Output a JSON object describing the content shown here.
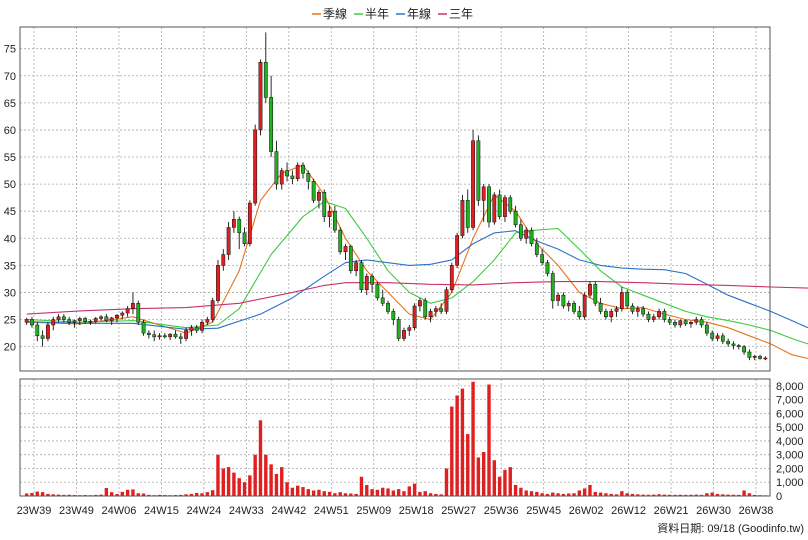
{
  "chart_data": {
    "type": "candlestick",
    "legend": [
      {
        "name": "季線",
        "color": "#e8731c"
      },
      {
        "name": "半年",
        "color": "#3dcc3d"
      },
      {
        "name": "年線",
        "color": "#2b72c8"
      },
      {
        "name": "三年",
        "color": "#c8326a"
      }
    ],
    "price_ticks": [
      20,
      25,
      30,
      35,
      40,
      45,
      50,
      55,
      60,
      65,
      70,
      75
    ],
    "volume_ticks": [
      "0",
      "1,000",
      "2,000",
      "3,000",
      "4,000",
      "5,000",
      "6,000",
      "7,000",
      "8,000"
    ],
    "x_labels": [
      "23W39",
      "23W49",
      "24W06",
      "24W15",
      "24W24",
      "24W33",
      "24W42",
      "24W51",
      "25W09",
      "25W18",
      "25W27",
      "25W36",
      "25W45",
      "26W02",
      "26W12",
      "26W21",
      "26W30",
      "26W38"
    ],
    "price_ylim": [
      15.5,
      79
    ],
    "volume_ylim": [
      0,
      8500
    ],
    "candle_colors": {
      "up": "#e02020",
      "down": "#20b020"
    },
    "volume_color": "#e02020",
    "grid": true,
    "candles": [
      [
        24.5,
        25.3,
        24.0,
        25.0,
        180
      ],
      [
        25.0,
        25.5,
        23.5,
        24.0,
        220
      ],
      [
        24.0,
        24.5,
        21.0,
        22.0,
        320
      ],
      [
        22.0,
        23.0,
        20.0,
        21.5,
        280
      ],
      [
        21.5,
        24.5,
        21.0,
        24.0,
        150
      ],
      [
        24.0,
        25.5,
        23.0,
        25.0,
        120
      ],
      [
        25.0,
        26.0,
        24.5,
        25.5,
        100
      ],
      [
        25.5,
        26.0,
        24.5,
        25.0,
        80
      ],
      [
        25.0,
        25.5,
        24.0,
        24.5,
        90
      ],
      [
        24.5,
        25.0,
        23.5,
        24.8,
        70
      ],
      [
        24.8,
        25.5,
        24.0,
        25.2,
        60
      ],
      [
        25.2,
        25.5,
        24.2,
        24.6,
        70
      ],
      [
        24.6,
        25.0,
        24.0,
        24.7,
        60
      ],
      [
        24.7,
        25.5,
        24.3,
        25.2,
        80
      ],
      [
        25.2,
        25.8,
        24.8,
        25.5,
        100
      ],
      [
        25.5,
        26.0,
        24.5,
        24.8,
        580
      ],
      [
        24.8,
        25.5,
        24.0,
        25.3,
        280
      ],
      [
        25.3,
        26.0,
        24.5,
        25.8,
        140
      ],
      [
        25.8,
        26.5,
        25.0,
        26.2,
        300
      ],
      [
        26.2,
        27.5,
        25.5,
        27.0,
        450
      ],
      [
        27.0,
        30.0,
        26.0,
        28.0,
        480
      ],
      [
        28.0,
        28.5,
        24.0,
        24.5,
        200
      ],
      [
        24.5,
        25.0,
        22.0,
        22.5,
        180
      ],
      [
        22.5,
        23.0,
        21.5,
        22.2,
        80
      ],
      [
        22.2,
        23.0,
        21.0,
        21.8,
        60
      ],
      [
        21.8,
        22.5,
        21.3,
        22.0,
        80
      ],
      [
        22.0,
        22.5,
        21.5,
        21.8,
        70
      ],
      [
        21.8,
        22.5,
        21.2,
        22.3,
        60
      ],
      [
        22.3,
        23.0,
        21.5,
        21.8,
        70
      ],
      [
        21.8,
        22.5,
        20.5,
        21.5,
        80
      ],
      [
        21.5,
        23.5,
        21.0,
        23.0,
        120
      ],
      [
        23.0,
        24.0,
        22.0,
        23.5,
        150
      ],
      [
        23.5,
        24.0,
        22.5,
        23.0,
        220
      ],
      [
        23.0,
        25.0,
        22.5,
        24.5,
        200
      ],
      [
        24.5,
        25.5,
        24.0,
        25.0,
        280
      ],
      [
        25.0,
        29.0,
        24.5,
        28.5,
        420
      ],
      [
        28.5,
        36.0,
        28.0,
        35.0,
        3000
      ],
      [
        35.0,
        38.0,
        34.0,
        37.0,
        2000
      ],
      [
        37.0,
        43.0,
        36.0,
        42.0,
        2100
      ],
      [
        42.0,
        45.0,
        41.0,
        43.5,
        1700
      ],
      [
        43.5,
        44.0,
        38.0,
        41.0,
        1300
      ],
      [
        41.0,
        42.0,
        38.5,
        39.0,
        1000
      ],
      [
        39.0,
        47.0,
        38.5,
        46.5,
        1500
      ],
      [
        46.5,
        61.0,
        46.0,
        60.0,
        3000
      ],
      [
        60.0,
        73.0,
        59.0,
        72.5,
        5500
      ],
      [
        72.5,
        78.0,
        65.0,
        66.0,
        3000
      ],
      [
        66.0,
        70.0,
        55.0,
        56.0,
        2300
      ],
      [
        56.0,
        58.0,
        49.0,
        50.0,
        1600
      ],
      [
        50.0,
        53.0,
        49.0,
        52.5,
        2100
      ],
      [
        52.5,
        54.0,
        50.5,
        51.5,
        1000
      ],
      [
        51.5,
        52.5,
        50.0,
        51.0,
        600
      ],
      [
        51.0,
        54.0,
        50.5,
        53.5,
        750
      ],
      [
        53.5,
        54.0,
        51.0,
        52.0,
        650
      ],
      [
        52.0,
        52.5,
        49.0,
        50.5,
        500
      ],
      [
        50.5,
        51.0,
        46.5,
        47.0,
        400
      ],
      [
        47.0,
        49.0,
        45.5,
        48.5,
        450
      ],
      [
        48.5,
        49.0,
        43.0,
        44.0,
        350
      ],
      [
        44.0,
        46.0,
        42.0,
        45.0,
        300
      ],
      [
        45.0,
        46.0,
        41.0,
        41.5,
        200
      ],
      [
        41.5,
        42.0,
        37.0,
        37.5,
        280
      ],
      [
        37.5,
        39.0,
        36.0,
        38.5,
        200
      ],
      [
        38.5,
        38.8,
        33.5,
        34.0,
        180
      ],
      [
        34.0,
        36.0,
        33.0,
        35.5,
        150
      ],
      [
        35.5,
        36.0,
        30.0,
        30.5,
        1400
      ],
      [
        30.5,
        33.5,
        29.5,
        33.0,
        800
      ],
      [
        33.0,
        33.5,
        30.0,
        31.5,
        500
      ],
      [
        31.5,
        32.0,
        28.5,
        29.0,
        450
      ],
      [
        29.0,
        30.5,
        27.5,
        28.0,
        600
      ],
      [
        28.0,
        28.5,
        26.0,
        26.5,
        550
      ],
      [
        26.5,
        27.0,
        24.0,
        25.0,
        400
      ],
      [
        25.0,
        25.5,
        21.0,
        21.5,
        500
      ],
      [
        21.5,
        23.5,
        21.0,
        23.0,
        350
      ],
      [
        23.0,
        24.0,
        22.0,
        23.5,
        700
      ],
      [
        23.5,
        28.0,
        23.0,
        27.5,
        900
      ],
      [
        27.5,
        29.0,
        26.5,
        28.5,
        300
      ],
      [
        28.5,
        29.0,
        25.0,
        25.5,
        350
      ],
      [
        25.5,
        27.0,
        24.5,
        26.5,
        200
      ],
      [
        26.5,
        27.5,
        25.5,
        27.0,
        150
      ],
      [
        27.0,
        28.0,
        26.0,
        26.5,
        120
      ],
      [
        26.5,
        31.0,
        26.0,
        30.5,
        2000
      ],
      [
        30.5,
        35.5,
        30.0,
        35.0,
        6500
      ],
      [
        35.0,
        41.0,
        34.5,
        40.5,
        7300
      ],
      [
        40.5,
        48.0,
        40.0,
        47.0,
        7800
      ],
      [
        47.0,
        49.0,
        41.0,
        42.0,
        4500
      ],
      [
        42.0,
        60.0,
        41.5,
        58.0,
        8300
      ],
      [
        58.0,
        59.0,
        46.0,
        47.0,
        2800
      ],
      [
        47.0,
        50.0,
        43.0,
        49.5,
        3200
      ],
      [
        49.5,
        50.0,
        42.0,
        43.0,
        8100
      ],
      [
        43.0,
        48.5,
        42.5,
        48.0,
        2600
      ],
      [
        48.0,
        49.0,
        43.5,
        44.0,
        1400
      ],
      [
        44.0,
        48.0,
        43.0,
        47.5,
        1900
      ],
      [
        47.5,
        48.0,
        44.5,
        45.0,
        2100
      ],
      [
        45.0,
        46.0,
        42.0,
        42.5,
        800
      ],
      [
        42.5,
        43.5,
        39.5,
        40.0,
        600
      ],
      [
        40.0,
        42.0,
        39.0,
        41.5,
        400
      ],
      [
        41.5,
        42.0,
        38.5,
        39.0,
        350
      ],
      [
        39.0,
        40.0,
        36.5,
        37.0,
        300
      ],
      [
        37.0,
        38.0,
        35.0,
        35.5,
        200
      ],
      [
        35.5,
        36.0,
        33.0,
        33.5,
        150
      ],
      [
        33.5,
        34.0,
        27.0,
        28.5,
        250
      ],
      [
        28.5,
        30.0,
        27.5,
        29.5,
        200
      ],
      [
        29.5,
        30.0,
        27.0,
        27.5,
        150
      ],
      [
        27.5,
        28.5,
        26.5,
        28.0,
        180
      ],
      [
        28.0,
        28.5,
        26.0,
        26.5,
        200
      ],
      [
        26.5,
        27.5,
        25.0,
        25.5,
        400
      ],
      [
        25.5,
        30.0,
        25.0,
        29.5,
        550
      ],
      [
        29.5,
        32.0,
        29.0,
        31.5,
        800
      ],
      [
        31.5,
        32.0,
        27.5,
        28.0,
        300
      ],
      [
        28.0,
        29.0,
        26.0,
        26.5,
        250
      ],
      [
        26.5,
        27.0,
        25.0,
        25.5,
        200
      ],
      [
        25.5,
        27.0,
        24.5,
        26.5,
        150
      ],
      [
        26.5,
        27.5,
        25.5,
        27.0,
        120
      ],
      [
        27.0,
        31.0,
        26.5,
        30.0,
        350
      ],
      [
        30.0,
        30.5,
        27.0,
        27.5,
        200
      ],
      [
        27.5,
        28.0,
        26.0,
        26.5,
        150
      ],
      [
        26.5,
        27.5,
        25.5,
        27.0,
        120
      ],
      [
        27.0,
        27.5,
        25.5,
        26.0,
        100
      ],
      [
        26.0,
        26.5,
        24.5,
        25.0,
        90
      ],
      [
        25.0,
        26.0,
        24.5,
        25.5,
        100
      ],
      [
        25.5,
        27.0,
        25.0,
        26.5,
        130
      ],
      [
        26.5,
        27.0,
        24.5,
        25.0,
        100
      ],
      [
        25.0,
        25.5,
        24.0,
        24.5,
        90
      ],
      [
        24.5,
        25.0,
        23.5,
        24.0,
        80
      ],
      [
        24.0,
        25.0,
        23.5,
        24.8,
        90
      ],
      [
        24.8,
        25.0,
        23.8,
        24.2,
        80
      ],
      [
        24.2,
        24.8,
        23.5,
        24.5,
        90
      ],
      [
        24.5,
        25.5,
        24.0,
        25.0,
        100
      ],
      [
        25.0,
        25.5,
        23.5,
        24.0,
        80
      ],
      [
        24.0,
        24.5,
        22.0,
        22.5,
        200
      ],
      [
        22.5,
        23.0,
        21.0,
        21.5,
        250
      ],
      [
        21.5,
        22.5,
        21.0,
        22.0,
        150
      ],
      [
        22.0,
        22.5,
        20.5,
        21.0,
        120
      ],
      [
        21.0,
        21.5,
        20.0,
        20.5,
        100
      ],
      [
        20.5,
        21.0,
        19.5,
        20.2,
        90
      ],
      [
        20.2,
        20.5,
        19.5,
        20.0,
        80
      ],
      [
        20.0,
        20.3,
        18.5,
        19.0,
        400
      ],
      [
        19.0,
        19.5,
        17.5,
        18.0,
        200
      ],
      [
        18.0,
        18.5,
        17.5,
        18.2,
        80
      ],
      [
        18.2,
        18.5,
        17.6,
        17.8,
        60
      ],
      [
        17.8,
        18.2,
        17.5,
        17.9,
        50
      ]
    ],
    "ma_quarter": [
      [
        0,
        24.5
      ],
      [
        10,
        24.2
      ],
      [
        20,
        25.5
      ],
      [
        30,
        22.5
      ],
      [
        35,
        24.5
      ],
      [
        40,
        34
      ],
      [
        44,
        47
      ],
      [
        48,
        52
      ],
      [
        52,
        53.5
      ],
      [
        56,
        48
      ],
      [
        60,
        40
      ],
      [
        64,
        34
      ],
      [
        68,
        30
      ],
      [
        72,
        26
      ],
      [
        76,
        25
      ],
      [
        80,
        30
      ],
      [
        84,
        40
      ],
      [
        88,
        48
      ],
      [
        92,
        45
      ],
      [
        96,
        39
      ],
      [
        100,
        35
      ],
      [
        104,
        30
      ],
      [
        108,
        28
      ],
      [
        112,
        27
      ],
      [
        116,
        27.2
      ],
      [
        120,
        26
      ],
      [
        124,
        25
      ],
      [
        128,
        24.5
      ],
      [
        132,
        23.5
      ],
      [
        136,
        22
      ],
      [
        140,
        20.5
      ],
      [
        144,
        18.5
      ],
      [
        147,
        17.8
      ]
    ],
    "ma_half": [
      [
        0,
        25
      ],
      [
        10,
        24.5
      ],
      [
        20,
        24.8
      ],
      [
        30,
        23.5
      ],
      [
        36,
        24
      ],
      [
        40,
        27
      ],
      [
        46,
        37
      ],
      [
        52,
        44
      ],
      [
        56,
        46.8
      ],
      [
        60,
        45.5
      ],
      [
        64,
        40
      ],
      [
        68,
        34
      ],
      [
        72,
        30
      ],
      [
        76,
        28
      ],
      [
        80,
        29
      ],
      [
        84,
        32
      ],
      [
        88,
        36
      ],
      [
        92,
        41
      ],
      [
        96,
        41.5
      ],
      [
        100,
        41.8
      ],
      [
        104,
        38
      ],
      [
        108,
        34
      ],
      [
        112,
        31
      ],
      [
        116,
        29.5
      ],
      [
        120,
        28
      ],
      [
        124,
        26.5
      ],
      [
        128,
        25.5
      ],
      [
        132,
        24.8
      ],
      [
        136,
        24
      ],
      [
        140,
        23
      ],
      [
        144,
        21.5
      ],
      [
        147,
        20.5
      ]
    ],
    "ma_year": [
      [
        0,
        24.6
      ],
      [
        10,
        24.3
      ],
      [
        20,
        24.3
      ],
      [
        30,
        23.2
      ],
      [
        36,
        23.4
      ],
      [
        44,
        26
      ],
      [
        50,
        29
      ],
      [
        56,
        33
      ],
      [
        60,
        35.5
      ],
      [
        64,
        36
      ],
      [
        68,
        35.5
      ],
      [
        72,
        35
      ],
      [
        76,
        35.2
      ],
      [
        80,
        36
      ],
      [
        84,
        39
      ],
      [
        88,
        41
      ],
      [
        92,
        41.4
      ],
      [
        96,
        39.5
      ],
      [
        100,
        38
      ],
      [
        104,
        36
      ],
      [
        108,
        35
      ],
      [
        112,
        34.5
      ],
      [
        116,
        34.3
      ],
      [
        120,
        34.2
      ],
      [
        124,
        33.5
      ],
      [
        128,
        31.5
      ],
      [
        132,
        29.5
      ],
      [
        136,
        28
      ],
      [
        140,
        26.5
      ],
      [
        144,
        24.8
      ],
      [
        147,
        23.5
      ]
    ],
    "ma_3year": [
      [
        0,
        26
      ],
      [
        10,
        26.6
      ],
      [
        20,
        27
      ],
      [
        30,
        27.2
      ],
      [
        40,
        28
      ],
      [
        50,
        30
      ],
      [
        56,
        31.3
      ],
      [
        60,
        31.8
      ],
      [
        68,
        31.8
      ],
      [
        76,
        31.5
      ],
      [
        84,
        31.4
      ],
      [
        92,
        31.8
      ],
      [
        100,
        32
      ],
      [
        108,
        32
      ],
      [
        116,
        31.8
      ],
      [
        124,
        31.5
      ],
      [
        132,
        31.3
      ],
      [
        140,
        31.0
      ],
      [
        147,
        30.8
      ]
    ]
  },
  "credit": "資料日期: 09/18 (Goodinfo.tw)"
}
